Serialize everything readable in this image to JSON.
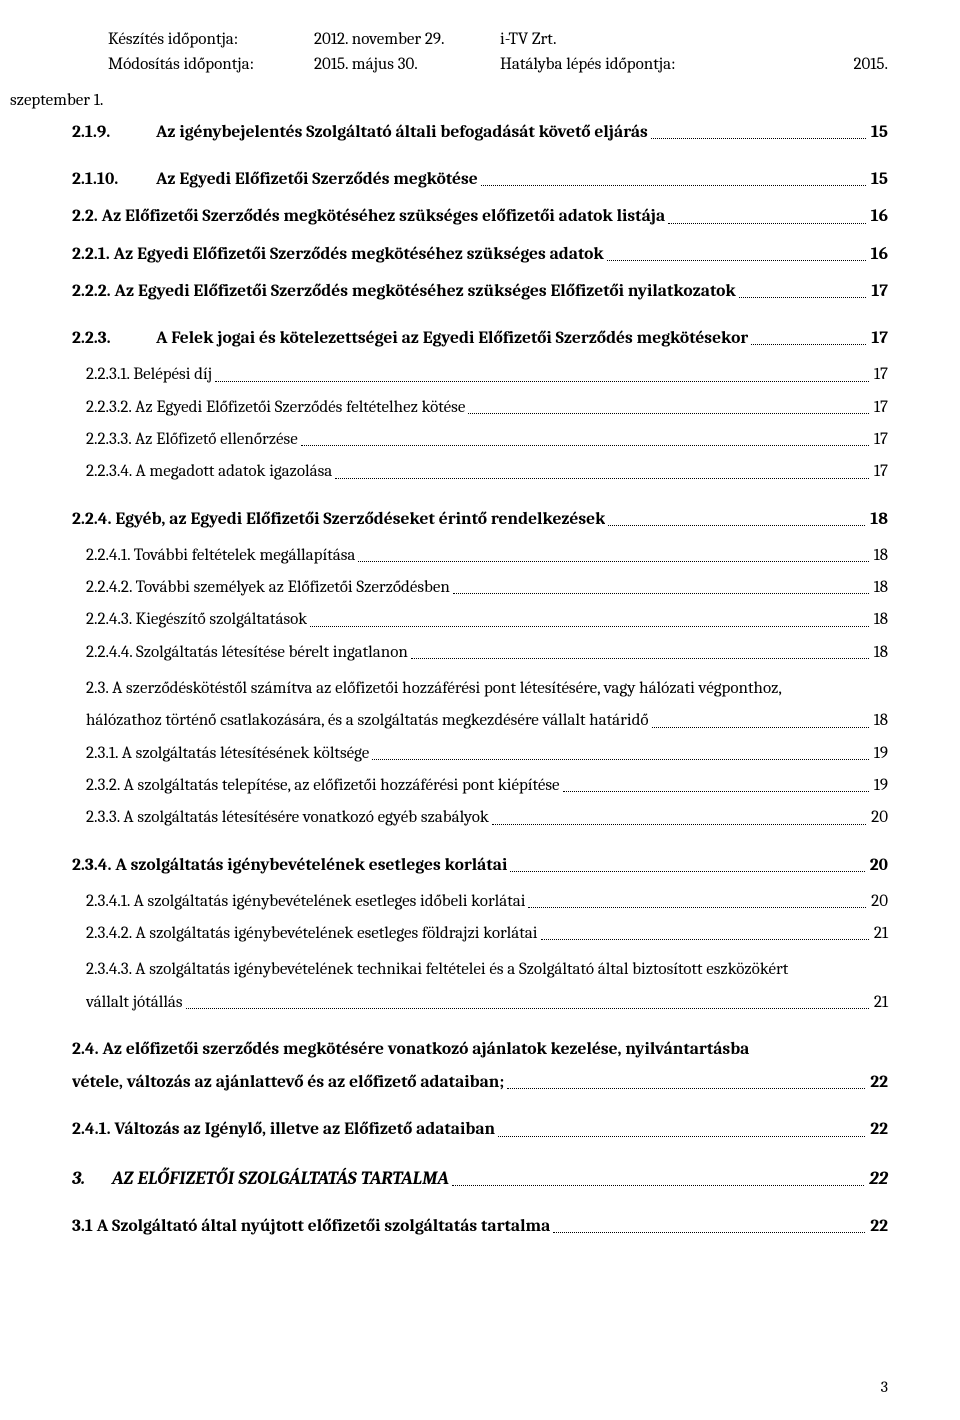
{
  "header": {
    "created_label": "Készítés időpontja:",
    "created_date": "2012. november 29.",
    "company": "i-TV Zrt.",
    "modified_label": "Módosítás időpontja:",
    "modified_date": "2015. május 30.",
    "effective_label": "Hatályba   lépés   időpontja:",
    "effective_year": "2015.",
    "szeptember": "szeptember 1."
  },
  "toc": [
    {
      "num": "2.1.9.",
      "text": "Az igénybejelentés Szolgáltató általi befogadását követő eljárás",
      "page": "15",
      "bold": true,
      "indent": 0,
      "numcol": true
    },
    {
      "num": "2.1.10.",
      "text": "Az Egyedi Előfizetői Szerződés megkötése",
      "page": "15",
      "bold": true,
      "indent": 0,
      "gap": "md",
      "numcol": true
    },
    {
      "num": "2.2. ",
      "text": "Az  Előfizetői Szerződés megkötéséhez szükséges előfizetői adatok listája",
      "page": "16",
      "bold": true,
      "indent": 0,
      "gap": "sm"
    },
    {
      "num": "2.2.1. ",
      "text": "Az Egyedi Előfizetői Szerződés megkötéséhez szükséges adatok",
      "page": "16",
      "bold": true,
      "indent": 0,
      "gap": "sm"
    },
    {
      "num": "2.2.2. ",
      "text": "Az Egyedi Előfizetői Szerződés megkötéséhez szükséges Előfizetői nyilatkozatok",
      "page": "17",
      "bold": true,
      "indent": 0,
      "gap": "sm"
    },
    {
      "num": "2.2.3.",
      "text": "A Felek jogai és kötelezettségei az Egyedi Előfizetői Szerződés megkötésekor",
      "page": "17",
      "bold": true,
      "indent": 0,
      "gap": "md",
      "numcol": true
    },
    {
      "num": "2.2.3.1. ",
      "text": "Belépési díj",
      "page": "17",
      "bold": false,
      "indent": 1,
      "gap": "sm"
    },
    {
      "num": "2.2.3.2. ",
      "text": "Az Egyedi Előfizetői Szerződés feltételhez kötése",
      "page": "17",
      "bold": false,
      "indent": 1
    },
    {
      "num": "2.2.3.3. ",
      "text": "Az Előfizető ellenőrzése",
      "page": "17",
      "bold": false,
      "indent": 1
    },
    {
      "num": "2.2.3.4. ",
      "text": "A megadott adatok igazolása",
      "page": "17",
      "bold": false,
      "indent": 1
    },
    {
      "num": "2.2.4. ",
      "text": "Egyéb, az Egyedi Előfizetői Szerződéseket érintő rendelkezések",
      "page": "18",
      "bold": true,
      "indent": 0,
      "gap": "md"
    },
    {
      "num": "2.2.4.1. ",
      "text": "További feltételek megállapítása",
      "page": "18",
      "bold": false,
      "indent": 1,
      "gap": "sm"
    },
    {
      "num": "2.2.4.2. ",
      "text": "További személyek az Előfizetői Szerződésben",
      "page": "18",
      "bold": false,
      "indent": 1
    },
    {
      "num": "2.2.4.3. ",
      "text": "Kiegészítő szolgáltatások",
      "page": "18",
      "bold": false,
      "indent": 1
    },
    {
      "num": "2.2.4.4. ",
      "text": "Szolgáltatás létesítése bérelt ingatlanon",
      "page": "18",
      "bold": false,
      "indent": 1
    }
  ],
  "multiline1": {
    "line1": "2.3. A szerződéskötéstől számítva az előfizetői hozzáférési pont létesítésére, vagy hálózati végponthoz,",
    "line2": "hálózathoz történő csatlakozására, és a szolgáltatás megkezdésére vállalt  határidő",
    "page": "18"
  },
  "toc2": [
    {
      "num": "2.3.1. ",
      "text": "A szolgáltatás létesítésének költsége",
      "page": "19",
      "bold": false,
      "indent": 1
    },
    {
      "num": "2.3.2. ",
      "text": "A szolgáltatás telepítése, az előfizetői hozzáférési pont kiépítése",
      "page": "19",
      "bold": false,
      "indent": 1
    },
    {
      "num": "2.3.3. ",
      "text": "A szolgáltatás létesítésére vonatkozó egyéb szabályok",
      "page": "20",
      "bold": false,
      "indent": 1
    },
    {
      "num": "2.3.4. ",
      "text": "A szolgáltatás igénybevételének esetleges korlátai",
      "page": "20",
      "bold": true,
      "indent": 0,
      "gap": "md"
    },
    {
      "num": "2.3.4.1. ",
      "text": "A szolgáltatás igénybevételének esetleges időbeli korlátai",
      "page": "20",
      "bold": false,
      "indent": 1,
      "gap": "sm"
    },
    {
      "num": "2.3.4.2. ",
      "text": "A szolgáltatás igénybevételének esetleges földrajzi korlátai",
      "page": "21",
      "bold": false,
      "indent": 1
    }
  ],
  "multiline2": {
    "line1": "2.3.4.3. A szolgáltatás igénybevételének technikai feltételei és a Szolgáltató által biztosított eszközökért",
    "line2": "vállalt jótállás",
    "page": "21"
  },
  "multiline3": {
    "line1": "2.4. Az előfizetői szerződés megkötésére vonatkozó ajánlatok kezelése, nyilvántartásba",
    "line2": "vétele, változás az ajánlattevő és az előfizető adataiban;",
    "page": "22"
  },
  "toc3": [
    {
      "num": "2.4.1. ",
      "text": "Változás az Igénylő, illetve az Előfizető adataiban",
      "page": "22",
      "bold": true,
      "indent": 0,
      "gap": "md"
    }
  ],
  "chapter": {
    "num": "3.",
    "text": "AZ ELŐFIZETŐI SZOLGÁLTATÁS TARTALMA",
    "page": "22"
  },
  "toc4": [
    {
      "num": "3.1 ",
      "text": "A Szolgáltató által nyújtott előfizetői szolgáltatás tartalma",
      "page": "22",
      "bold": true,
      "indent": 0,
      "gap": "md"
    }
  ],
  "footer": {
    "page_number": "3"
  }
}
